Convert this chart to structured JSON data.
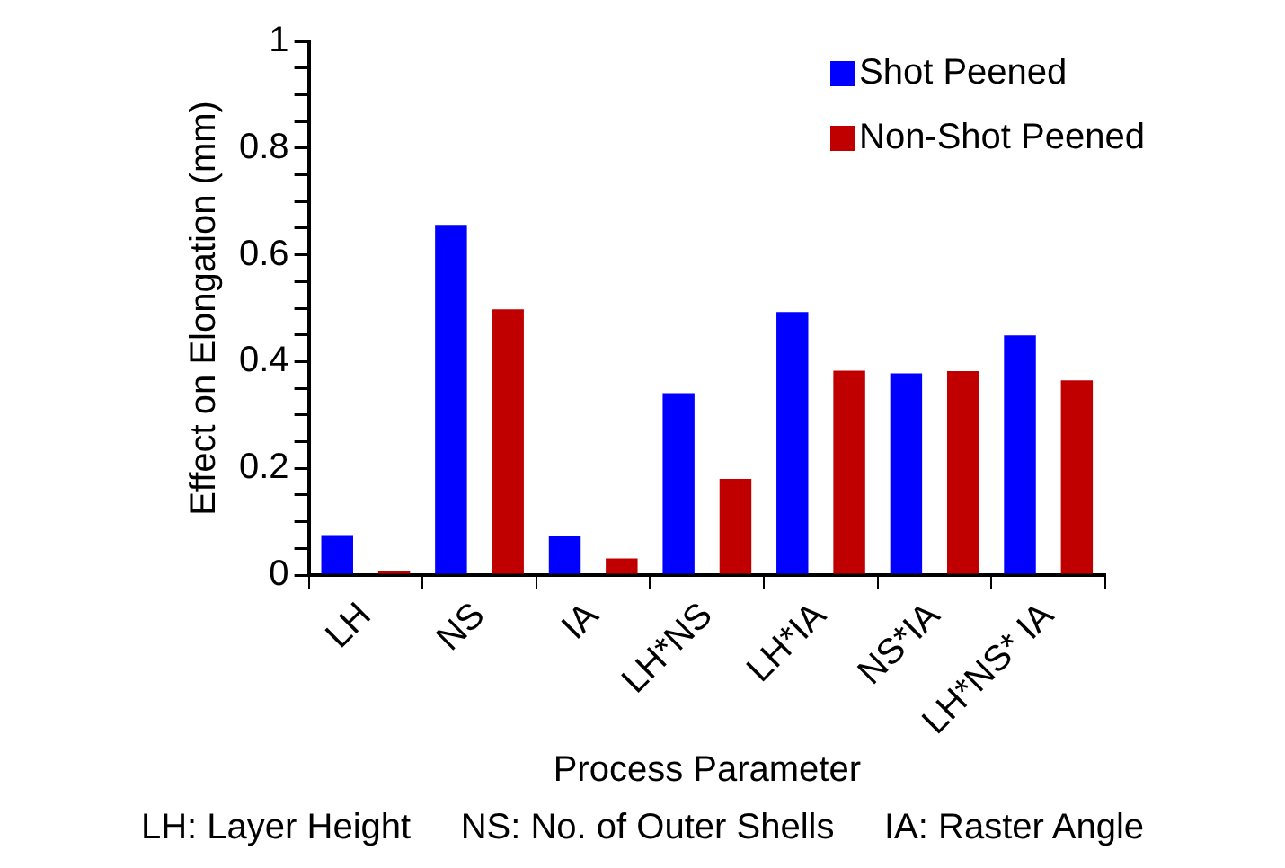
{
  "chart_data": {
    "type": "bar",
    "xlabel": "Process Parameter",
    "ylabel": "Effect on Elongation (mm)",
    "categories": [
      "LH",
      "NS",
      "IA",
      "LH*NS",
      "LH*IA",
      "NS*IA",
      "LH*NS* IA"
    ],
    "series": [
      {
        "name": "Shot Peened",
        "color": "#0000ff",
        "values": [
          0.075,
          0.656,
          0.074,
          0.341,
          0.493,
          0.378,
          0.449
        ]
      },
      {
        "name": "Non-Shot Peened",
        "color": "#c00000",
        "values": [
          0.007,
          0.498,
          0.031,
          0.18,
          0.383,
          0.382,
          0.365
        ]
      }
    ],
    "ylim": [
      0,
      1
    ],
    "yticks": [
      0,
      {
        "value": 0.05,
        "label": null
      },
      0.2,
      {
        "value": 0.1,
        "label": null
      },
      {
        "value": 0.15,
        "label": null
      },
      {
        "value": 0.25,
        "label": null
      },
      {
        "value": 0.3,
        "label": null
      },
      {
        "value": 0.35,
        "label": null
      },
      0.4,
      {
        "value": 0.45,
        "label": null
      },
      {
        "value": 0.5,
        "label": null
      },
      {
        "value": 0.55,
        "label": null
      },
      0.6,
      {
        "value": 0.65,
        "label": null
      },
      {
        "value": 0.7,
        "label": null
      },
      {
        "value": 0.75,
        "label": null
      },
      0.8,
      {
        "value": 0.85,
        "label": null
      },
      {
        "value": 0.9,
        "label": null
      },
      {
        "value": 0.95,
        "label": null
      },
      1
    ],
    "grid": false,
    "legend": "top right",
    "annotations": [
      "LH: Layer Height     NS: No. of Outer Shells     IA: Raster Angle"
    ]
  }
}
